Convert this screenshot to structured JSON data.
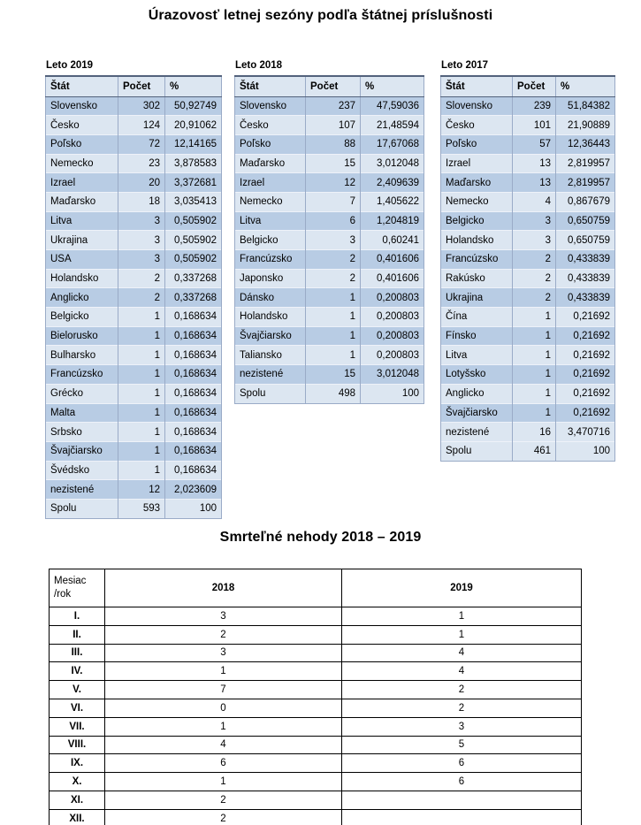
{
  "titles": {
    "main": "Úrazovosť letnej sezóny podľa štátnej príslušnosti",
    "fatal": "Smrteľné nehody 2018 – 2019"
  },
  "colors": {
    "band_dark": "#b8cce4",
    "band_light": "#dce6f1",
    "header_bg": "#dce6f1",
    "accent_border": "#53627c",
    "grid_border": "#9aabc7",
    "fatal_border": "#000000"
  },
  "summer_tables": [
    {
      "label": "Leto 2019",
      "headers": [
        "Štát",
        "Počet",
        "%"
      ],
      "rows": [
        [
          "Slovensko",
          "302",
          "50,92749"
        ],
        [
          "Česko",
          "124",
          "20,91062"
        ],
        [
          "Poľsko",
          "72",
          "12,14165"
        ],
        [
          "Nemecko",
          "23",
          "3,878583"
        ],
        [
          "Izrael",
          "20",
          "3,372681"
        ],
        [
          "Maďarsko",
          "18",
          "3,035413"
        ],
        [
          "Litva",
          "3",
          "0,505902"
        ],
        [
          "Ukrajina",
          "3",
          "0,505902"
        ],
        [
          "USA",
          "3",
          "0,505902"
        ],
        [
          "Holandsko",
          "2",
          "0,337268"
        ],
        [
          "Anglicko",
          "2",
          "0,337268"
        ],
        [
          "Belgicko",
          "1",
          "0,168634"
        ],
        [
          "Bielorusko",
          "1",
          "0,168634"
        ],
        [
          "Bulharsko",
          "1",
          "0,168634"
        ],
        [
          "Francúzsko",
          "1",
          "0,168634"
        ],
        [
          "Grécko",
          "1",
          "0,168634"
        ],
        [
          "Malta",
          "1",
          "0,168634"
        ],
        [
          "Srbsko",
          "1",
          "0,168634"
        ],
        [
          "Švajčiarsko",
          "1",
          "0,168634"
        ],
        [
          "Švédsko",
          "1",
          "0,168634"
        ],
        [
          "nezistené",
          "12",
          "2,023609"
        ],
        [
          "Spolu",
          "593",
          "100"
        ]
      ]
    },
    {
      "label": "Leto 2018",
      "headers": [
        "Štát",
        "Počet",
        "%"
      ],
      "rows": [
        [
          "Slovensko",
          "237",
          "47,59036"
        ],
        [
          "Česko",
          "107",
          "21,48594"
        ],
        [
          "Poľsko",
          "88",
          "17,67068"
        ],
        [
          "Maďarsko",
          "15",
          "3,012048"
        ],
        [
          "Izrael",
          "12",
          "2,409639"
        ],
        [
          "Nemecko",
          "7",
          "1,405622"
        ],
        [
          "Litva",
          "6",
          "1,204819"
        ],
        [
          "Belgicko",
          "3",
          "0,60241"
        ],
        [
          "Francúzsko",
          "2",
          "0,401606"
        ],
        [
          "Japonsko",
          "2",
          "0,401606"
        ],
        [
          "Dánsko",
          "1",
          "0,200803"
        ],
        [
          "Holandsko",
          "1",
          "0,200803"
        ],
        [
          "Švajčiarsko",
          "1",
          "0,200803"
        ],
        [
          "Taliansko",
          "1",
          "0,200803"
        ],
        [
          "nezistené",
          "15",
          "3,012048"
        ],
        [
          "Spolu",
          "498",
          "100"
        ]
      ]
    },
    {
      "label": "Leto 2017",
      "headers": [
        "Štát",
        "Počet",
        "%"
      ],
      "rows": [
        [
          "Slovensko",
          "239",
          "51,84382"
        ],
        [
          "Česko",
          "101",
          "21,90889"
        ],
        [
          "Poľsko",
          "57",
          "12,36443"
        ],
        [
          "Izrael",
          "13",
          "2,819957"
        ],
        [
          "Maďarsko",
          "13",
          "2,819957"
        ],
        [
          "Nemecko",
          "4",
          "0,867679"
        ],
        [
          "Belgicko",
          "3",
          "0,650759"
        ],
        [
          "Holandsko",
          "3",
          "0,650759"
        ],
        [
          "Francúzsko",
          "2",
          "0,433839"
        ],
        [
          "Rakúsko",
          "2",
          "0,433839"
        ],
        [
          "Ukrajina",
          "2",
          "0,433839"
        ],
        [
          "Čína",
          "1",
          "0,21692"
        ],
        [
          "Fínsko",
          "1",
          "0,21692"
        ],
        [
          "Litva",
          "1",
          "0,21692"
        ],
        [
          "Lotyšsko",
          "1",
          "0,21692"
        ],
        [
          "Anglicko",
          "1",
          "0,21692"
        ],
        [
          "Švajčiarsko",
          "1",
          "0,21692"
        ],
        [
          "nezistené",
          "16",
          "3,470716"
        ],
        [
          "Spolu",
          "461",
          "100"
        ]
      ]
    }
  ],
  "fatal_table": {
    "header": {
      "month_label_line1": "Mesiac",
      "month_label_line2": "/rok",
      "col_2018": "2018",
      "col_2019": "2019"
    },
    "rows": [
      [
        "I.",
        "3",
        "1"
      ],
      [
        "II.",
        "2",
        "1"
      ],
      [
        "III.",
        "3",
        "4"
      ],
      [
        "IV.",
        "1",
        "4"
      ],
      [
        "V.",
        "7",
        "2"
      ],
      [
        "VI.",
        "0",
        "2"
      ],
      [
        "VII.",
        "1",
        "3"
      ],
      [
        "VIII.",
        "4",
        "5"
      ],
      [
        "IX.",
        "6",
        "6"
      ],
      [
        "X.",
        "1",
        "6"
      ],
      [
        "XI.",
        "2",
        ""
      ],
      [
        "XII.",
        "2",
        ""
      ]
    ]
  }
}
